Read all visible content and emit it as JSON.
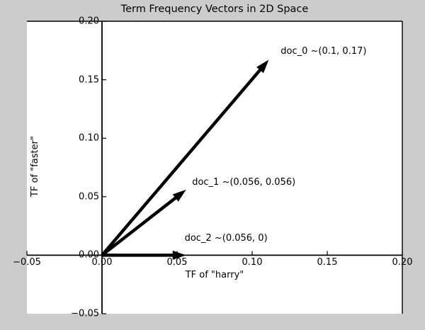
{
  "figure": {
    "background_color": "#cccccc",
    "axes_background_color": "#ffffff",
    "foreground_color": "#000000"
  },
  "chart_data": {
    "type": "line",
    "subtype": "vector-plot",
    "title": "Term Frequency Vectors in 2D Space",
    "xlabel": "TF of \"harry\"",
    "ylabel": "TF of \"faster\"",
    "xlim": [
      -0.05,
      0.2
    ],
    "ylim": [
      -0.05,
      0.2
    ],
    "xticks": [
      -0.05,
      0.0,
      0.05,
      0.1,
      0.15,
      0.2
    ],
    "yticks": [
      -0.05,
      0.0,
      0.05,
      0.1,
      0.15,
      0.2
    ],
    "grid": false,
    "legend": null,
    "spines_at_zero": true,
    "vector_color": "#000000",
    "vectors": [
      {
        "name": "doc_0",
        "from": [
          0,
          0
        ],
        "to": [
          0.111,
          0.167
        ],
        "annotation": "doc_0 ~(0.1, 0.17)",
        "annotation_anchor": [
          0.119,
          0.174
        ]
      },
      {
        "name": "doc_1",
        "from": [
          0,
          0
        ],
        "to": [
          0.056,
          0.056
        ],
        "annotation": "doc_1 ~(0.056, 0.056)",
        "annotation_anchor": [
          0.06,
          0.062
        ]
      },
      {
        "name": "doc_2",
        "from": [
          0,
          0
        ],
        "to": [
          0.056,
          0
        ],
        "annotation": "doc_2 ~(0.056, 0)",
        "annotation_anchor": [
          0.055,
          0.014
        ]
      }
    ]
  }
}
